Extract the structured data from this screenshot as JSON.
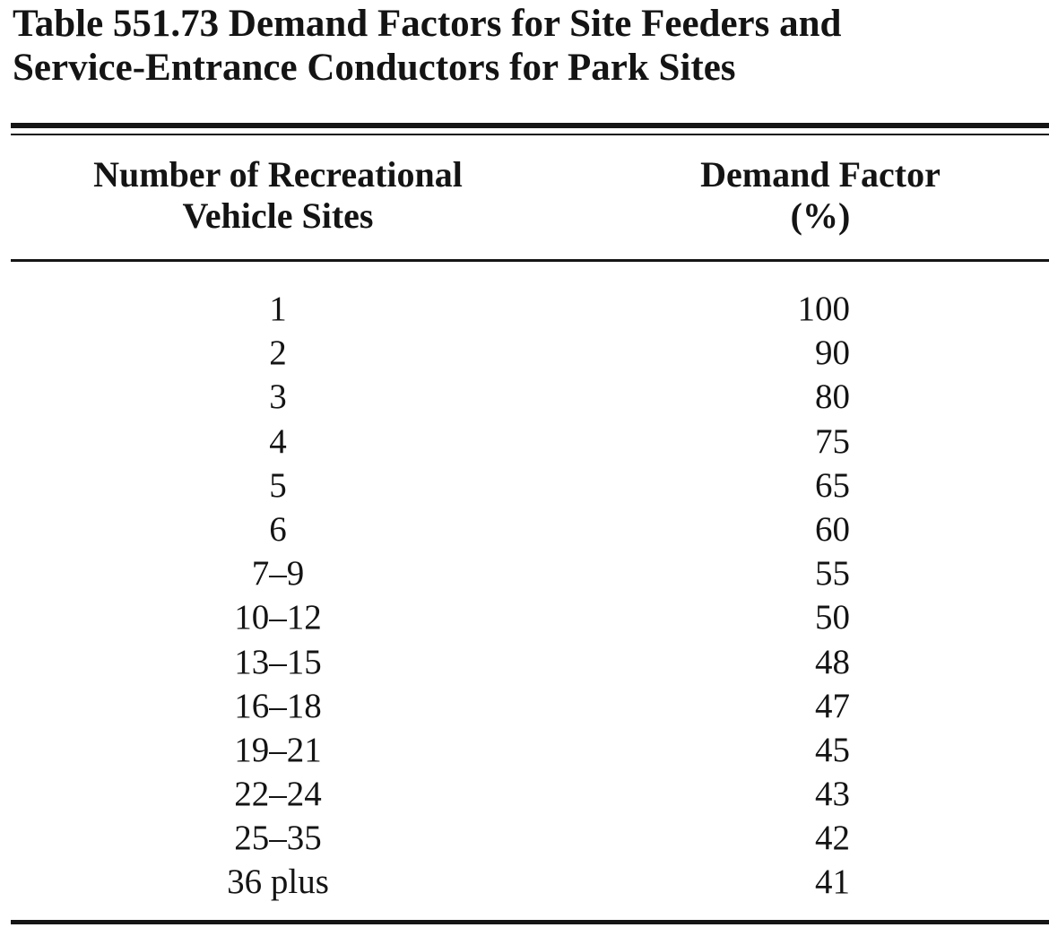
{
  "table": {
    "caption_line1": "Table 551.73  Demand Factors for Site Feeders and",
    "caption_line2": "Service-Entrance Conductors for Park Sites",
    "headers": {
      "sites_line1": "Number of Recreational",
      "sites_line2": "Vehicle Sites",
      "factor_line1": "Demand Factor",
      "factor_line2": "(%)"
    },
    "rows": [
      {
        "sites": "1",
        "factor": "100"
      },
      {
        "sites": "2",
        "factor": "90"
      },
      {
        "sites": "3",
        "factor": "80"
      },
      {
        "sites": "4",
        "factor": "75"
      },
      {
        "sites": "5",
        "factor": "65"
      },
      {
        "sites": "6",
        "factor": "60"
      },
      {
        "sites": "7–9",
        "factor": "55"
      },
      {
        "sites": "10–12",
        "factor": "50"
      },
      {
        "sites": "13–15",
        "factor": "48"
      },
      {
        "sites": "16–18",
        "factor": "47"
      },
      {
        "sites": "19–21",
        "factor": "45"
      },
      {
        "sites": "22–24",
        "factor": "43"
      },
      {
        "sites": "25–35",
        "factor": "42"
      },
      {
        "sites": "36 plus",
        "factor": "41"
      }
    ]
  }
}
